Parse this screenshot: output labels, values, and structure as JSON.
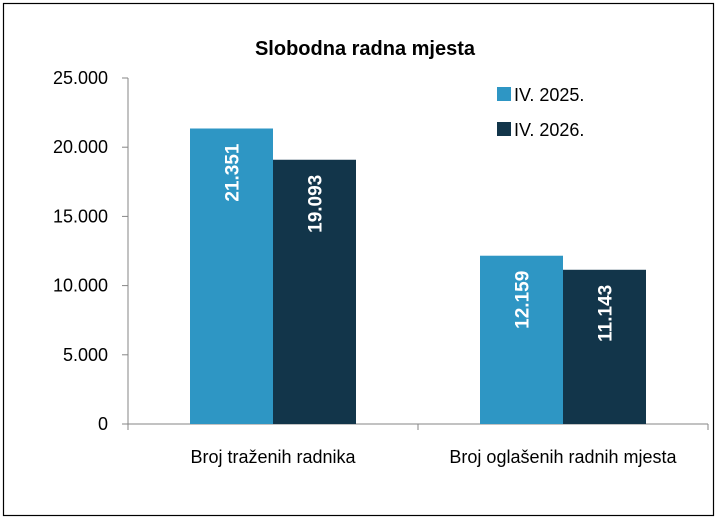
{
  "chart_data": {
    "type": "bar",
    "title": "Slobodna radna mjesta",
    "categories": [
      "Broj traženih radnika",
      "Broj oglašenih radnih mjesta"
    ],
    "series": [
      {
        "name": "IV. 2025.",
        "color": "#2e96c4",
        "values": [
          21351,
          12159
        ],
        "value_labels": [
          "21.351",
          "12.159"
        ]
      },
      {
        "name": "IV. 2026.",
        "color": "#12354a",
        "values": [
          19093,
          11143
        ],
        "value_labels": [
          "19.093",
          "11.143"
        ]
      }
    ],
    "ylim": [
      0,
      25000
    ],
    "yticks": [
      0,
      {
        "value": 5000,
        "label": "5.000"
      },
      {
        "value": 10000,
        "label": "10.000"
      },
      {
        "value": 15000,
        "label": "15.000"
      },
      {
        "value": 20000,
        "label": "20.000"
      },
      {
        "value": 25000,
        "label": "25.000"
      }
    ],
    "legend": "top-right"
  }
}
